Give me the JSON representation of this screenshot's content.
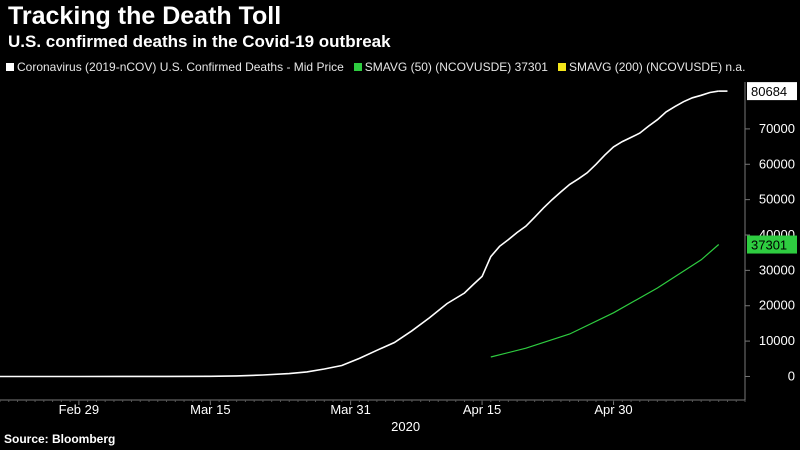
{
  "title": "Tracking the Death Toll",
  "subtitle": "U.S. confirmed deaths in the Covid-19 outbreak",
  "source": "Source: Bloomberg",
  "legend": [
    {
      "label": "Coronavirus (2019-nCOV) U.S. Confirmed Deaths - Mid Price",
      "color": "#ffffff"
    },
    {
      "label": "SMAVG (50) (NCOVUSDE) 37301",
      "color": "#2ecc40"
    },
    {
      "label": "SMAVG (200) (NCOVUSDE) n.a.",
      "color": "#f5e61a"
    }
  ],
  "chart_data": {
    "type": "line",
    "title": "Tracking the Death Toll",
    "subtitle": "U.S. confirmed deaths in the Covid-19 outbreak",
    "x_ticks": [
      "Feb 29",
      "Mar 15",
      "Mar 31",
      "Apr 15",
      "Apr 30"
    ],
    "x_year_label": "2020",
    "y_ticks": [
      "0",
      "10000",
      "20000",
      "30000",
      "40000",
      "50000",
      "60000",
      "70000"
    ],
    "ylim": [
      -1000,
      81000
    ],
    "grid": false,
    "last_values": {
      "deaths": "80684",
      "sma50": "37301"
    },
    "series": [
      {
        "name": "Coronavirus (2019-nCOV) U.S. Confirmed Deaths - Mid Price",
        "color": "#ffffff",
        "x": [
          "2020-02-20",
          "2020-02-29",
          "2020-03-05",
          "2020-03-10",
          "2020-03-15",
          "2020-03-18",
          "2020-03-21",
          "2020-03-24",
          "2020-03-26",
          "2020-03-28",
          "2020-03-30",
          "2020-04-01",
          "2020-04-03",
          "2020-04-05",
          "2020-04-07",
          "2020-04-09",
          "2020-04-11",
          "2020-04-13",
          "2020-04-14",
          "2020-04-15",
          "2020-04-16",
          "2020-04-17",
          "2020-04-18",
          "2020-04-19",
          "2020-04-20",
          "2020-04-21",
          "2020-04-22",
          "2020-04-23",
          "2020-04-24",
          "2020-04-25",
          "2020-04-26",
          "2020-04-27",
          "2020-04-28",
          "2020-04-29",
          "2020-04-30",
          "2020-05-01",
          "2020-05-02",
          "2020-05-03",
          "2020-05-04",
          "2020-05-05",
          "2020-05-06",
          "2020-05-07",
          "2020-05-08",
          "2020-05-09",
          "2020-05-10",
          "2020-05-11",
          "2020-05-12"
        ],
        "values": [
          0,
          1,
          11,
          30,
          60,
          150,
          400,
          800,
          1300,
          2100,
          3100,
          5100,
          7400,
          9600,
          12900,
          16600,
          20600,
          23600,
          26000,
          28300,
          33900,
          36800,
          38700,
          40700,
          42500,
          45000,
          47600,
          50000,
          52200,
          54300,
          55900,
          57600,
          60000,
          62600,
          64900,
          66400,
          67600,
          68800,
          70800,
          72600,
          74800,
          76300,
          77700,
          78800,
          79500,
          80300,
          80684
        ]
      },
      {
        "name": "SMAVG (50) (NCOVUSDE)",
        "color": "#2ecc40",
        "x": [
          "2020-04-16",
          "2020-04-20",
          "2020-04-25",
          "2020-04-30",
          "2020-05-05",
          "2020-05-10",
          "2020-05-12"
        ],
        "values": [
          5500,
          8000,
          12000,
          18000,
          25000,
          33000,
          37301
        ]
      }
    ]
  }
}
